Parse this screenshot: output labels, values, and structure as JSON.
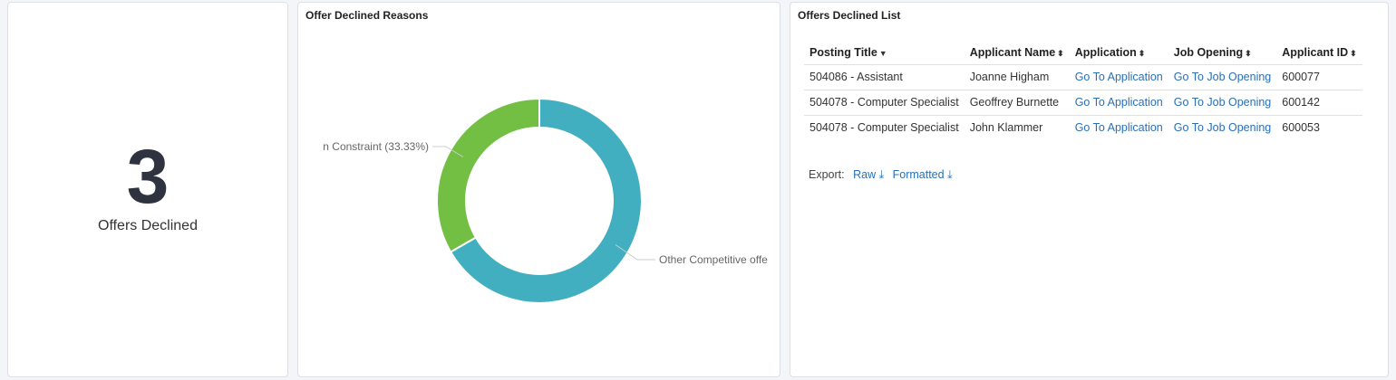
{
  "kpi": {
    "value": "3",
    "label": "Offers Declined"
  },
  "chart_panel": {
    "title": "Offer Declined Reasons"
  },
  "chart_data": {
    "type": "pie",
    "donut": true,
    "slices": [
      {
        "label": "Other Competitive offe",
        "value": 66.67,
        "color": "#41afc0"
      },
      {
        "label": "n Constraint (33.33%)",
        "value": 33.33,
        "color": "#72bf44"
      }
    ]
  },
  "list": {
    "title": "Offers Declined List",
    "columns": [
      "Posting Title",
      "Applicant Name",
      "Application",
      "Job Opening",
      "Applicant ID"
    ],
    "sort_icons": [
      "▼",
      "⬍",
      "⬍",
      "⬍",
      "⬍"
    ],
    "rows": [
      [
        "504086 - Assistant",
        "Joanne Higham",
        "Go To Application",
        "Go To Job Opening",
        "600077"
      ],
      [
        "504078 - Computer Specialist",
        "Geoffrey Burnette",
        "Go To Application",
        "Go To Job Opening",
        "600142"
      ],
      [
        "504078 - Computer Specialist",
        "John Klammer",
        "Go To Application",
        "Go To Job Opening",
        "600053"
      ]
    ],
    "export_label": "Export:",
    "export_raw": "Raw",
    "export_formatted": "Formatted"
  }
}
